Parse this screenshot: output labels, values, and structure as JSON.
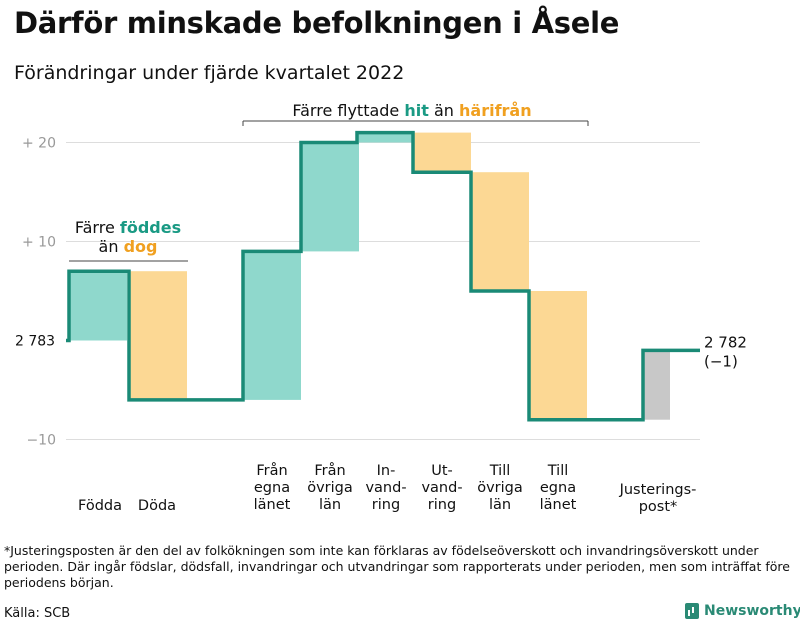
{
  "title": "Därför minskade befolkningen i Åsele",
  "subtitle": "Förändringar under fjärde kvartalet 2022",
  "chart_data": {
    "type": "waterfall",
    "start_value": 2783,
    "start_label": "2 783",
    "end_label": "2 782",
    "end_change_label": "(−1)",
    "ylim": [
      -11,
      22
    ],
    "y_ticks": [
      {
        "value": 20,
        "label": "+ 20"
      },
      {
        "value": 10,
        "label": "+ 10"
      },
      {
        "value": -10,
        "label": "−10"
      }
    ],
    "steps": [
      {
        "key": "fodda",
        "lines": [
          "Födda"
        ],
        "change": 7,
        "color": "teal"
      },
      {
        "key": "doda",
        "lines": [
          "Döda"
        ],
        "change": -13,
        "color": "orange"
      },
      {
        "key": "fran-egna-lanet",
        "lines": [
          "Från",
          "egna",
          "länet"
        ],
        "change": 15,
        "color": "teal"
      },
      {
        "key": "fran-ovriga-lan",
        "lines": [
          "Från",
          "övriga",
          "län"
        ],
        "change": 11,
        "color": "teal"
      },
      {
        "key": "invandring",
        "lines": [
          "In-",
          "vand-",
          "ring"
        ],
        "change": 1,
        "color": "teal"
      },
      {
        "key": "utvandring",
        "lines": [
          "Ut-",
          "vand-",
          "ring"
        ],
        "change": -4,
        "color": "orange"
      },
      {
        "key": "till-ovriga-lan",
        "lines": [
          "Till",
          "övriga",
          "län"
        ],
        "change": -12,
        "color": "orange"
      },
      {
        "key": "till-egna-lanet",
        "lines": [
          "Till",
          "egna",
          "länet"
        ],
        "change": -13,
        "color": "orange"
      },
      {
        "key": "justeringspost",
        "lines": [
          "Justerings-",
          "post*"
        ],
        "change": 7,
        "color": "gray"
      }
    ],
    "annotations": {
      "births": {
        "line1": "Färre",
        "highlight1": "föddes",
        "line2": "än",
        "highlight2": "dog"
      },
      "migration": {
        "prefix": "Färre flyttade",
        "highlight1": "hit",
        "middle": "än",
        "highlight2": "härifrån"
      }
    },
    "colors": {
      "teal": "#8fd8cc",
      "orange": "#fcd894",
      "gray": "#c8c8c8",
      "line": "#1a8a76",
      "teal_text": "#1a9a84",
      "orange_text": "#f0a020",
      "grid": "#dddddd",
      "tick": "#999999"
    }
  },
  "footnote": "*Justeringsposten är den del av folkökningen som inte kan förklaras av födelseöverskott och invandringsöverskott under perioden. Där ingår födslar, dödsfall, invandringar och utvandringar som rapporterats under perioden, men som inträffat före periodens början.",
  "source": "Källa: SCB",
  "brand": "Newsworthy"
}
